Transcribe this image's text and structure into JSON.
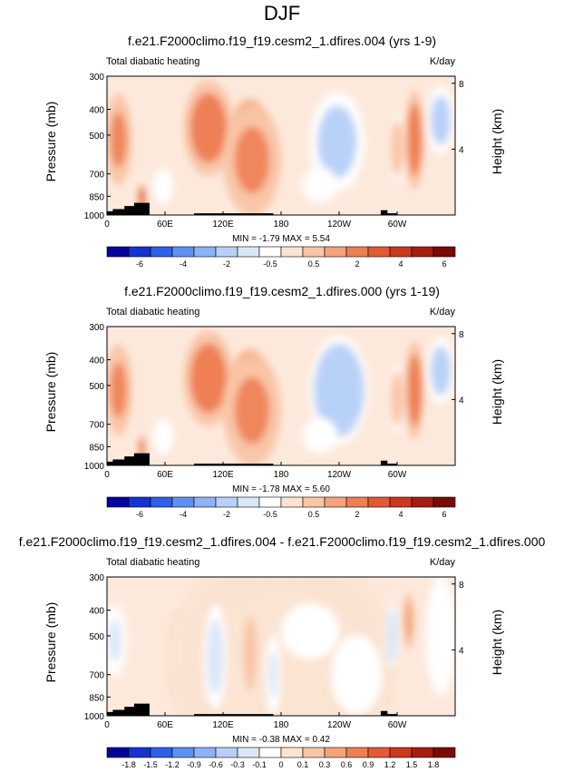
{
  "figure_title": "DJF",
  "colors": {
    "topo": "#000000",
    "zero_band_top": "#ffffff",
    "zero_band_diff": "#ffffff"
  },
  "chart_data": [
    {
      "type": "heatmap",
      "title": "f.e21.F2000climo.f19_f19.cesm2_1.dfires.004 (yrs 1-9)",
      "left_label": "Total diabatic heating",
      "right_label": "K/day",
      "ylabel": "Pressure (mb)",
      "ylabel_right": "Height (km)",
      "x_ticks": [
        "0",
        "60E",
        "120E",
        "180",
        "120W",
        "60W"
      ],
      "x_tick_values": [
        0,
        60,
        120,
        180,
        240,
        300
      ],
      "xlim": [
        0,
        360
      ],
      "y_ticks": [
        "300",
        "400",
        "500",
        "700",
        "850",
        "1000"
      ],
      "y_tick_values": [
        300,
        400,
        500,
        700,
        850,
        1000
      ],
      "ylim": [
        1000,
        300
      ],
      "y_right_ticks": [
        "8",
        "4"
      ],
      "minmax": "MIN = -1.79  MAX =  5.54",
      "colorbar_labels": [
        "-6",
        "-4",
        "-2",
        "-0.5",
        "0.5",
        "2",
        "4",
        "6"
      ],
      "colorbar_colors": [
        "#05059c",
        "#1433d1",
        "#2f5fe6",
        "#5f8ff2",
        "#8db2f5",
        "#b8d0f7",
        "#dae7f7",
        "#ffffff",
        "#fbe3d2",
        "#f8c5a6",
        "#f4a37c",
        "#ee7e54",
        "#e15a35",
        "#c9381f",
        "#a51d10",
        "#7a0a05"
      ],
      "features": [
        {
          "x": 12,
          "p": 520,
          "w": 14,
          "h": 230,
          "v": 2.5
        },
        {
          "x": 36,
          "p": 860,
          "w": 4,
          "h": 70,
          "v": 4.0
        },
        {
          "x": 58,
          "p": 780,
          "w": 10,
          "h": 90,
          "v": -0.5
        },
        {
          "x": 105,
          "p": 470,
          "w": 26,
          "h": 240,
          "v": 3.5
        },
        {
          "x": 148,
          "p": 470,
          "w": 20,
          "h": 150,
          "v": 5.0
        },
        {
          "x": 150,
          "p": 620,
          "w": 30,
          "h": 280,
          "v": 2.0
        },
        {
          "x": 238,
          "p": 530,
          "w": 28,
          "h": 250,
          "v": -1.0
        },
        {
          "x": 220,
          "p": 770,
          "w": 18,
          "h": 90,
          "v": -0.5
        },
        {
          "x": 318,
          "p": 520,
          "w": 10,
          "h": 250,
          "v": 3.5
        },
        {
          "x": 300,
          "p": 560,
          "w": 8,
          "h": 160,
          "v": 1.5
        },
        {
          "x": 345,
          "p": 440,
          "w": 14,
          "h": 170,
          "v": -0.7
        }
      ],
      "topography": [
        [
          0,
          1000
        ],
        [
          0,
          968
        ],
        [
          6,
          968
        ],
        [
          6,
          950
        ],
        [
          18,
          950
        ],
        [
          18,
          925
        ],
        [
          28,
          925
        ],
        [
          28,
          900
        ],
        [
          44,
          900
        ],
        [
          44,
          1000
        ],
        [
          90,
          1000
        ],
        [
          90,
          985
        ],
        [
          172,
          985
        ],
        [
          172,
          1000
        ],
        [
          283,
          1000
        ],
        [
          283,
          960
        ],
        [
          290,
          960
        ],
        [
          290,
          985
        ],
        [
          300,
          985
        ],
        [
          300,
          1000
        ]
      ]
    },
    {
      "type": "heatmap",
      "title": "f.e21.F2000climo.f19_f19.cesm2_1.dfires.000 (yrs 1-19)",
      "left_label": "Total diabatic heating",
      "right_label": "K/day",
      "ylabel": "Pressure (mb)",
      "ylabel_right": "Height (km)",
      "x_ticks": [
        "0",
        "60E",
        "120E",
        "180",
        "120W",
        "60W"
      ],
      "x_tick_values": [
        0,
        60,
        120,
        180,
        240,
        300
      ],
      "xlim": [
        0,
        360
      ],
      "y_ticks": [
        "300",
        "400",
        "500",
        "700",
        "850",
        "1000"
      ],
      "y_tick_values": [
        300,
        400,
        500,
        700,
        850,
        1000
      ],
      "ylim": [
        1000,
        300
      ],
      "y_right_ticks": [
        "8",
        "4"
      ],
      "minmax": "MIN = -1.78  MAX =  5.60",
      "colorbar_labels": [
        "-6",
        "-4",
        "-2",
        "-0.5",
        "0.5",
        "2",
        "4",
        "6"
      ],
      "colorbar_colors": [
        "#05059c",
        "#1433d1",
        "#2f5fe6",
        "#5f8ff2",
        "#8db2f5",
        "#b8d0f7",
        "#dae7f7",
        "#ffffff",
        "#fbe3d2",
        "#f8c5a6",
        "#f4a37c",
        "#ee7e54",
        "#e15a35",
        "#c9381f",
        "#a51d10",
        "#7a0a05"
      ],
      "features": [
        {
          "x": 12,
          "p": 520,
          "w": 14,
          "h": 230,
          "v": 2.5
        },
        {
          "x": 36,
          "p": 860,
          "w": 4,
          "h": 70,
          "v": 3.5
        },
        {
          "x": 58,
          "p": 780,
          "w": 10,
          "h": 90,
          "v": -0.5
        },
        {
          "x": 105,
          "p": 470,
          "w": 26,
          "h": 240,
          "v": 3.5
        },
        {
          "x": 148,
          "p": 470,
          "w": 20,
          "h": 150,
          "v": 5.2
        },
        {
          "x": 150,
          "p": 620,
          "w": 30,
          "h": 280,
          "v": 2.0
        },
        {
          "x": 240,
          "p": 520,
          "w": 30,
          "h": 270,
          "v": -1.1
        },
        {
          "x": 220,
          "p": 770,
          "w": 18,
          "h": 90,
          "v": -0.5
        },
        {
          "x": 318,
          "p": 520,
          "w": 10,
          "h": 250,
          "v": 3.5
        },
        {
          "x": 300,
          "p": 560,
          "w": 8,
          "h": 160,
          "v": 1.5
        },
        {
          "x": 345,
          "p": 440,
          "w": 14,
          "h": 170,
          "v": -0.7
        }
      ],
      "topography": [
        [
          0,
          1000
        ],
        [
          0,
          968
        ],
        [
          6,
          968
        ],
        [
          6,
          950
        ],
        [
          18,
          950
        ],
        [
          18,
          925
        ],
        [
          28,
          925
        ],
        [
          28,
          900
        ],
        [
          44,
          900
        ],
        [
          44,
          1000
        ],
        [
          90,
          1000
        ],
        [
          90,
          985
        ],
        [
          172,
          985
        ],
        [
          172,
          1000
        ],
        [
          283,
          1000
        ],
        [
          283,
          960
        ],
        [
          290,
          960
        ],
        [
          290,
          985
        ],
        [
          300,
          985
        ],
        [
          300,
          1000
        ]
      ]
    },
    {
      "type": "heatmap",
      "title": "f.e21.F2000climo.f19_f19.cesm2_1.dfires.004 - f.e21.F2000climo.f19_f19.cesm2_1.dfires.000",
      "left_label": "Total diabatic heating",
      "right_label": "K/day",
      "ylabel": "Pressure (mb)",
      "ylabel_right": "Height (km)",
      "x_ticks": [
        "0",
        "60E",
        "120E",
        "180",
        "120W",
        "60W"
      ],
      "x_tick_values": [
        0,
        60,
        120,
        180,
        240,
        300
      ],
      "xlim": [
        0,
        360
      ],
      "y_ticks": [
        "300",
        "400",
        "500",
        "700",
        "850",
        "1000"
      ],
      "y_tick_values": [
        300,
        400,
        500,
        700,
        850,
        1000
      ],
      "ylim": [
        1000,
        300
      ],
      "y_right_ticks": [
        "8",
        "4"
      ],
      "minmax": "MIN = -0.38  MAX =  0.42",
      "colorbar_labels": [
        "-1.8",
        "-1.5",
        "-1.2",
        "-0.9",
        "-0.6",
        "-0.3",
        "-0.1",
        "0",
        "0.1",
        "0.3",
        "0.6",
        "0.9",
        "1.2",
        "1.5",
        "1.8"
      ],
      "colorbar_colors": [
        "#05059c",
        "#1433d1",
        "#2f5fe6",
        "#5f8ff2",
        "#8db2f5",
        "#b8d0f7",
        "#dae7f7",
        "#ffffff",
        "#fbe3d2",
        "#f8c5a6",
        "#f4a37c",
        "#ee7e54",
        "#e15a35",
        "#c9381f",
        "#a51d10",
        "#7a0a05"
      ],
      "features": [
        {
          "x": 180,
          "p": 650,
          "w": 120,
          "h": 600,
          "v": 0.05
        },
        {
          "x": 8,
          "p": 520,
          "w": 12,
          "h": 180,
          "v": -0.12
        },
        {
          "x": 70,
          "p": 560,
          "w": 10,
          "h": 200,
          "v": 0.08
        },
        {
          "x": 112,
          "p": 600,
          "w": 12,
          "h": 260,
          "v": -0.15
        },
        {
          "x": 148,
          "p": 580,
          "w": 10,
          "h": 260,
          "v": 0.15
        },
        {
          "x": 172,
          "p": 700,
          "w": 8,
          "h": 200,
          "v": -0.12
        },
        {
          "x": 210,
          "p": 480,
          "w": 30,
          "h": 140,
          "v": -0.07
        },
        {
          "x": 258,
          "p": 700,
          "w": 26,
          "h": 200,
          "v": -0.07
        },
        {
          "x": 295,
          "p": 500,
          "w": 7,
          "h": 160,
          "v": -0.25
        },
        {
          "x": 312,
          "p": 440,
          "w": 7,
          "h": 160,
          "v": 0.3
        },
        {
          "x": 345,
          "p": 500,
          "w": 15,
          "h": 300,
          "v": -0.08
        }
      ],
      "topography": [
        [
          0,
          1000
        ],
        [
          0,
          968
        ],
        [
          6,
          968
        ],
        [
          6,
          950
        ],
        [
          18,
          950
        ],
        [
          18,
          925
        ],
        [
          28,
          925
        ],
        [
          28,
          900
        ],
        [
          44,
          900
        ],
        [
          44,
          1000
        ],
        [
          90,
          1000
        ],
        [
          90,
          985
        ],
        [
          172,
          985
        ],
        [
          172,
          1000
        ],
        [
          283,
          1000
        ],
        [
          283,
          960
        ],
        [
          290,
          960
        ],
        [
          290,
          985
        ],
        [
          300,
          985
        ],
        [
          300,
          1000
        ]
      ]
    }
  ]
}
